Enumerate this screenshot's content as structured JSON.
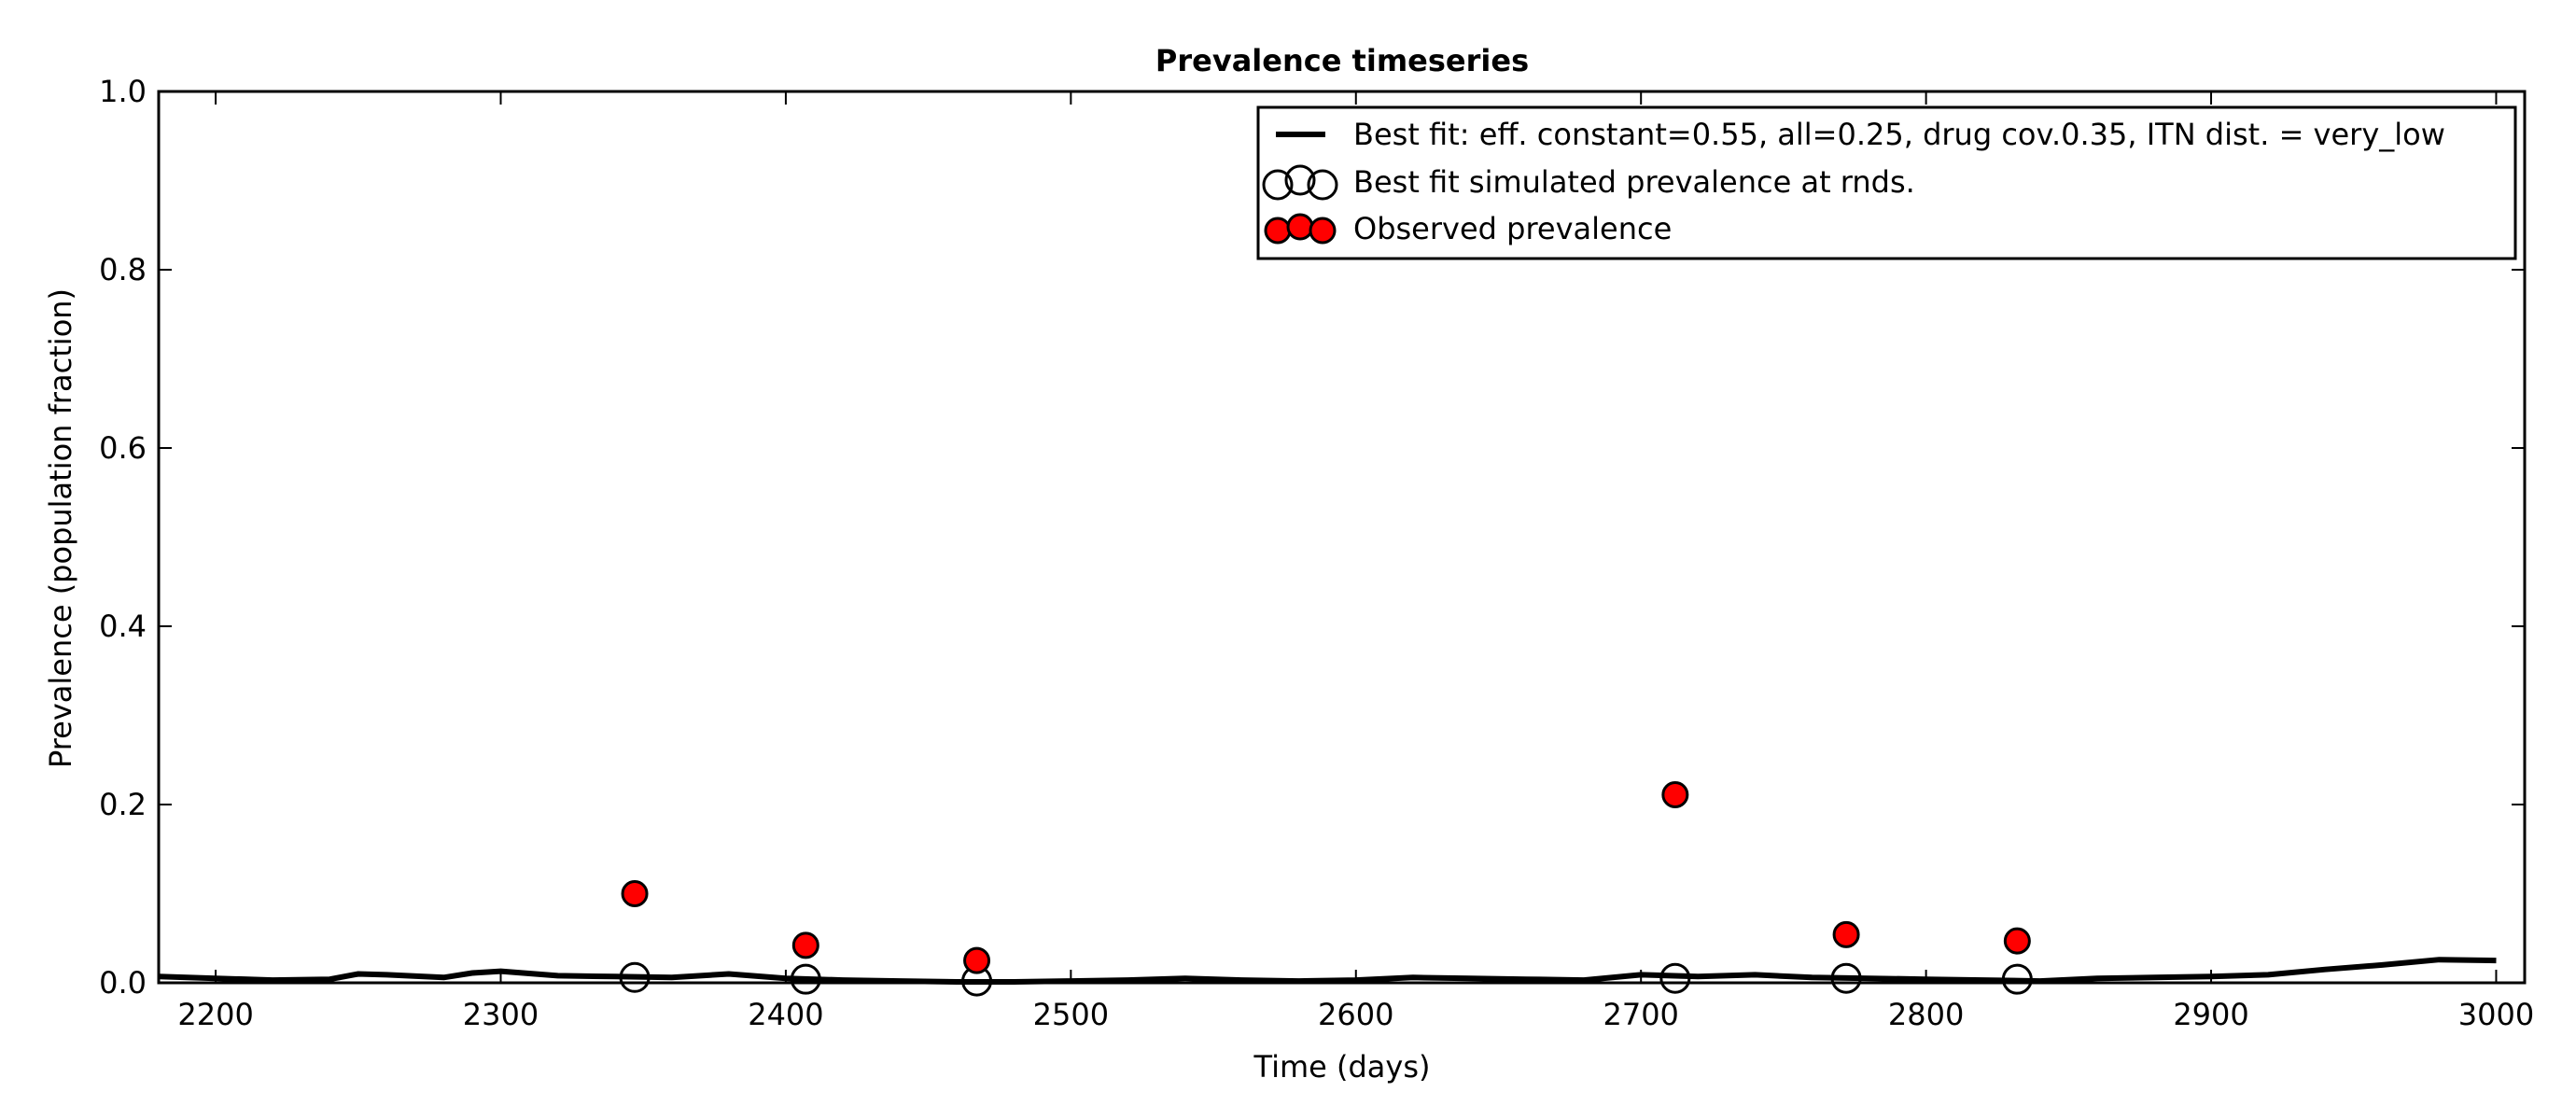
{
  "chart_data": {
    "type": "line",
    "title": "Prevalence timeseries",
    "xlabel": "Time (days)",
    "ylabel": "Prevalence (population fraction)",
    "xlim": [
      2180,
      3010
    ],
    "ylim": [
      0.0,
      1.0
    ],
    "xticks": [
      2200,
      2300,
      2400,
      2500,
      2600,
      2700,
      2800,
      2900,
      3000
    ],
    "yticks": [
      0.0,
      0.2,
      0.4,
      0.6,
      0.8,
      1.0
    ],
    "ytick_labels": [
      "0.0",
      "0.2",
      "0.4",
      "0.6",
      "0.8",
      "1.0"
    ],
    "grid": false,
    "legend_position": "top-right",
    "series": [
      {
        "name": "Best fit: eff. constant=0.55, all=0.25, drug cov.0.35, ITN dist. = very_low",
        "kind": "line",
        "color": "#000000",
        "x": [
          2180,
          2200,
          2220,
          2240,
          2250,
          2260,
          2280,
          2290,
          2300,
          2320,
          2340,
          2360,
          2380,
          2400,
          2420,
          2440,
          2460,
          2480,
          2500,
          2520,
          2540,
          2560,
          2580,
          2600,
          2620,
          2640,
          2660,
          2680,
          2700,
          2720,
          2740,
          2760,
          2780,
          2800,
          2820,
          2840,
          2860,
          2880,
          2900,
          2920,
          2940,
          2960,
          2980,
          3000
        ],
        "y": [
          0.007,
          0.005,
          0.003,
          0.004,
          0.01,
          0.009,
          0.006,
          0.011,
          0.013,
          0.008,
          0.007,
          0.006,
          0.01,
          0.005,
          0.003,
          0.002,
          0.001,
          0.001,
          0.002,
          0.003,
          0.005,
          0.003,
          0.002,
          0.003,
          0.006,
          0.005,
          0.004,
          0.003,
          0.009,
          0.007,
          0.009,
          0.006,
          0.005,
          0.004,
          0.003,
          0.002,
          0.005,
          0.006,
          0.007,
          0.009,
          0.015,
          0.02,
          0.026,
          0.025
        ]
      },
      {
        "name": "Best fit simulated prevalence at rnds.",
        "kind": "scatter",
        "marker": "open-circle",
        "color": "#000000",
        "x": [
          2347,
          2407,
          2467,
          2712,
          2772,
          2832
        ],
        "y": [
          0.006,
          0.004,
          0.002,
          0.005,
          0.005,
          0.004
        ]
      },
      {
        "name": "Observed prevalence",
        "kind": "scatter",
        "marker": "filled-circle",
        "color": "#ff0000",
        "x": [
          2347,
          2407,
          2467,
          2712,
          2772,
          2832
        ],
        "y": [
          0.1,
          0.042,
          0.025,
          0.211,
          0.054,
          0.047
        ]
      }
    ]
  }
}
